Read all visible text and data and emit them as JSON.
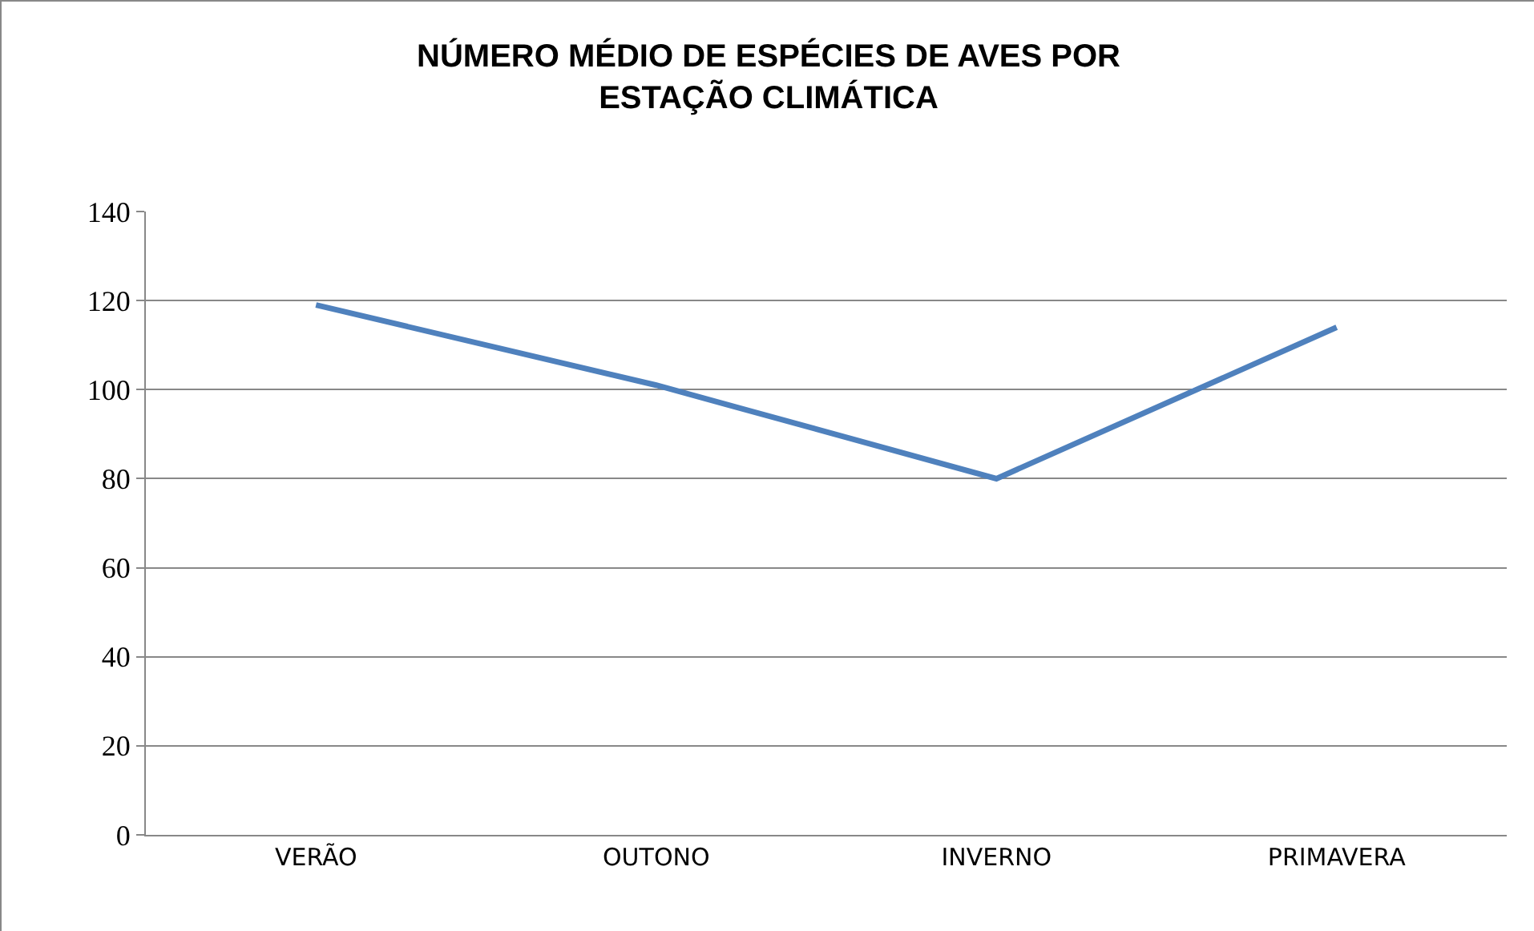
{
  "chart_data": {
    "type": "line",
    "title": "NÚMERO MÉDIO DE ESPÉCIES DE AVES POR\nESTAÇÃO CLIMÁTICA",
    "categories": [
      "VERÃO",
      "OUTONO",
      "INVERNO",
      "PRIMAVERA"
    ],
    "series": [
      {
        "color": "#4f81bd",
        "values": [
          119,
          101,
          80,
          114
        ]
      }
    ],
    "ylim": [
      0,
      140
    ],
    "yticks": [
      0,
      20,
      40,
      60,
      80,
      100,
      120,
      140
    ],
    "grid": "y",
    "marker": "none",
    "line_style": "solid"
  }
}
